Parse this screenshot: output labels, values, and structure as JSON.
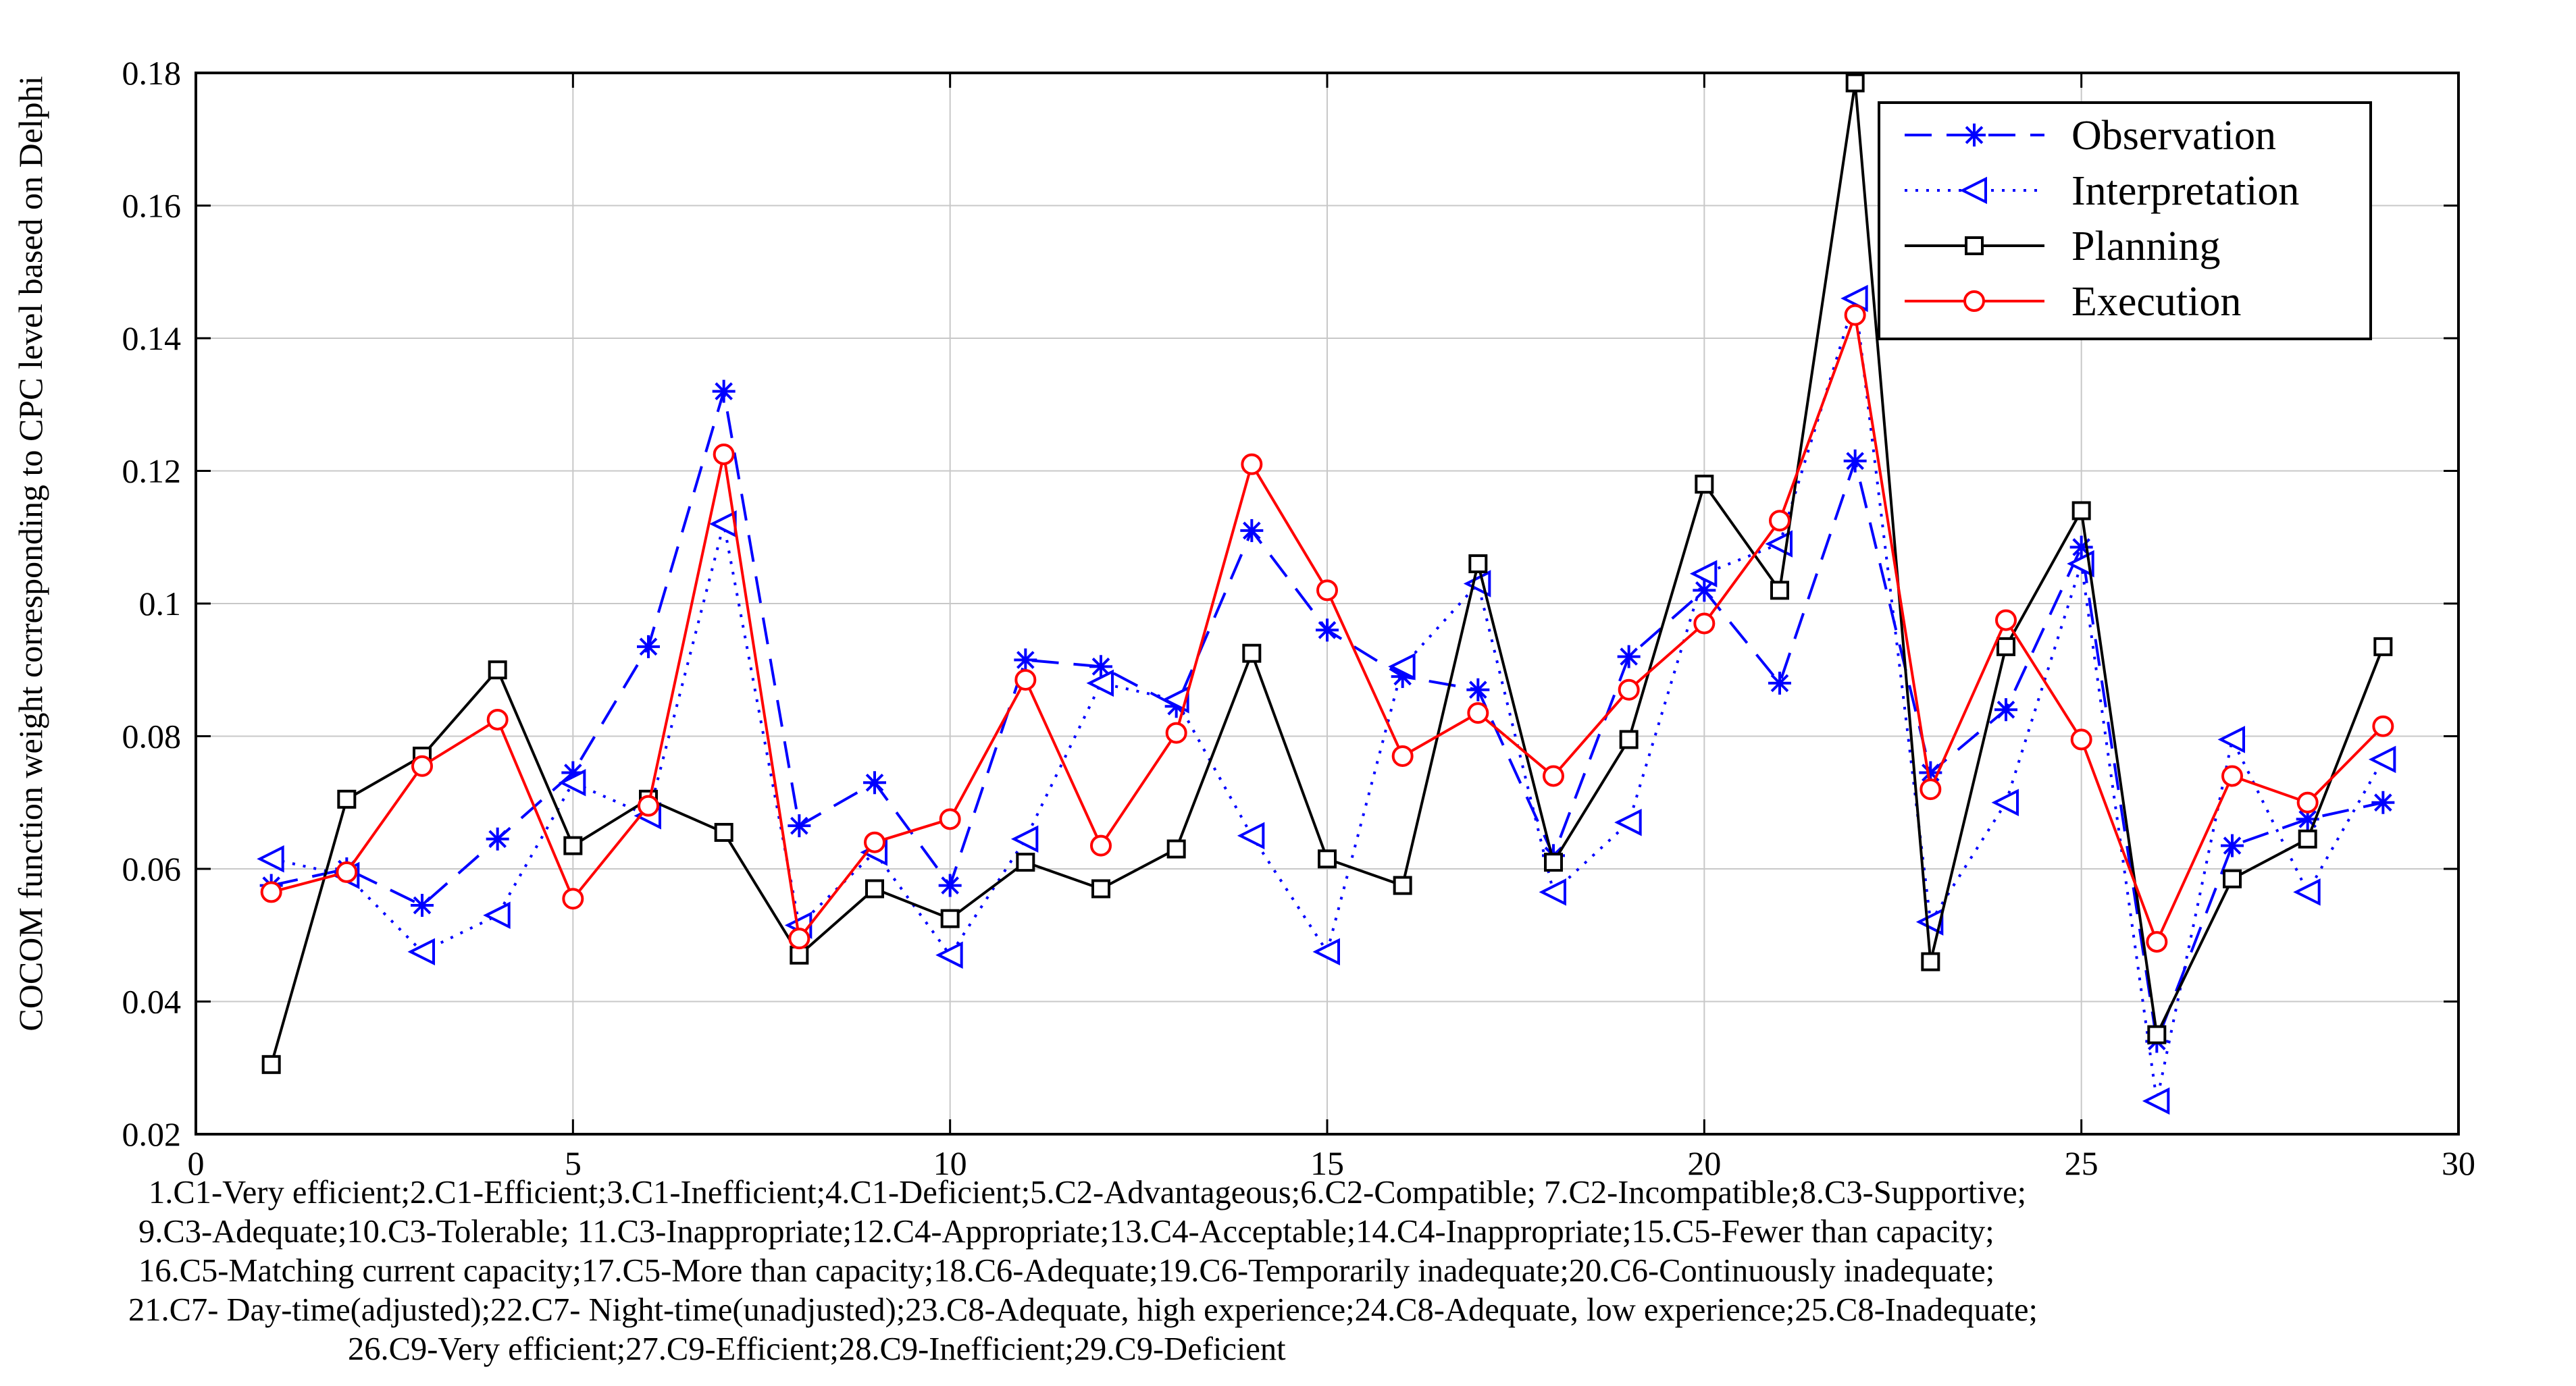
{
  "chart_data": {
    "type": "line",
    "title": "",
    "xlabel": "",
    "ylabel": "COCOM function weight corresponding to CPC level based on Delphi",
    "xlim": [
      0,
      30
    ],
    "ylim": [
      0.02,
      0.18
    ],
    "xticks": [
      0,
      5,
      10,
      15,
      20,
      25,
      30
    ],
    "yticks": [
      0.02,
      0.04,
      0.06,
      0.08,
      0.1,
      0.12,
      0.14,
      0.16,
      0.18
    ],
    "xtick_labels": [
      "0",
      "5",
      "10",
      "15",
      "20",
      "25",
      "30"
    ],
    "ytick_labels": [
      "0.02",
      "0.04",
      "0.06",
      "0.08",
      "0.1",
      "0.12",
      "0.14",
      "0.16",
      "0.18"
    ],
    "grid": true,
    "legend_position": "top-right",
    "x": [
      1,
      2,
      3,
      4,
      5,
      6,
      7,
      8,
      9,
      10,
      11,
      12,
      13,
      14,
      15,
      16,
      17,
      18,
      19,
      20,
      21,
      22,
      23,
      24,
      25,
      26,
      27,
      28,
      29
    ],
    "series": [
      {
        "name": "Observation",
        "color": "#0000ff",
        "line_style": "dashed",
        "marker": "asterisk",
        "values": [
          0.0575,
          0.06,
          0.0545,
          0.0645,
          0.0745,
          0.0935,
          0.132,
          0.0665,
          0.073,
          0.0575,
          0.0915,
          0.0905,
          0.0845,
          0.111,
          0.096,
          0.089,
          0.087,
          0.062,
          0.092,
          0.102,
          0.088,
          0.1215,
          0.0745,
          0.084,
          0.1085,
          0.034,
          0.0635,
          0.0675,
          0.07
        ]
      },
      {
        "name": "Interpretation",
        "color": "#0000ff",
        "line_style": "dotted",
        "marker": "triangle-left",
        "values": [
          0.0615,
          0.059,
          0.0475,
          0.053,
          0.073,
          0.068,
          0.112,
          0.0515,
          0.0625,
          0.047,
          0.0645,
          0.088,
          0.0855,
          0.065,
          0.0475,
          0.0905,
          0.103,
          0.0565,
          0.067,
          0.1045,
          0.109,
          0.146,
          0.052,
          0.07,
          0.106,
          0.025,
          0.0795,
          0.0565,
          0.0765
        ]
      },
      {
        "name": "Planning",
        "color": "#000000",
        "line_style": "solid",
        "marker": "square",
        "values": [
          0.0305,
          0.0705,
          0.077,
          0.09,
          0.0635,
          0.0705,
          0.0655,
          0.047,
          0.057,
          0.0525,
          0.061,
          0.057,
          0.063,
          0.0925,
          0.0615,
          0.0575,
          0.106,
          0.061,
          0.0795,
          0.118,
          0.102,
          0.1785,
          0.046,
          0.0935,
          0.114,
          0.035,
          0.0585,
          0.0645,
          0.0935
        ]
      },
      {
        "name": "Execution",
        "color": "#ff0000",
        "line_style": "solid",
        "marker": "circle",
        "values": [
          0.0565,
          0.0595,
          0.0755,
          0.0825,
          0.0555,
          0.0695,
          0.1225,
          0.0495,
          0.064,
          0.0675,
          0.0885,
          0.0635,
          0.0805,
          0.121,
          0.102,
          0.077,
          0.0835,
          0.074,
          0.087,
          0.097,
          0.1125,
          0.1435,
          0.072,
          0.0975,
          0.0795,
          0.049,
          0.074,
          0.07,
          0.0815
        ]
      }
    ]
  },
  "caption": {
    "lines": [
      "1.C1-Very efficient;2.C1-Efficient;3.C1-Inefficient;4.C1-Deficient;5.C2-Advantageous;6.C2-Compatible; 7.C2-Incompatible;8.C3-Supportive;",
      "9.C3-Adequate;10.C3-Tolerable; 11.C3-Inappropriate;12.C4-Appropriate;13.C4-Acceptable;14.C4-Inappropriate;15.C5-Fewer than capacity;",
      "16.C5-Matching current capacity;17.C5-More than capacity;18.C6-Adequate;19.C6-Temporarily inadequate;20.C6-Continuously inadequate;",
      "21.C7- Day-time(adjusted);22.C7- Night-time(unadjusted);23.C8-Adequate, high experience;24.C8-Adequate, low experience;25.C8-Inadequate;",
      "26.C9-Very efficient;27.C9-Efficient;28.C9-Inefficient;29.C9-Deficient"
    ]
  }
}
